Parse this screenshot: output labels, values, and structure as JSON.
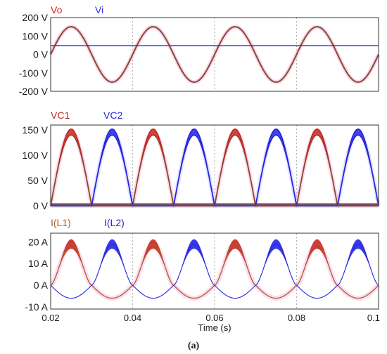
{
  "chart_data": [
    {
      "type": "line",
      "series": [
        {
          "name": "Vo",
          "color": "#d62020",
          "amplitude": 150,
          "shape": "sine",
          "period": 0.02
        },
        {
          "name": "Vi",
          "color": "#2b2bd9",
          "constant": 48
        }
      ],
      "ylim": [
        -200,
        200
      ],
      "yticks": [
        {
          "v": 200,
          "label": "200 V"
        },
        {
          "v": 100,
          "label": "100 V"
        },
        {
          "v": 0,
          "label": "0 V"
        },
        {
          "v": -100,
          "label": "-100 V"
        },
        {
          "v": -200,
          "label": "-200 V"
        }
      ]
    },
    {
      "type": "line",
      "series": [
        {
          "name": "VC1",
          "color": "#c62820",
          "peak": 140,
          "shape": "half-sine",
          "phase": "positive"
        },
        {
          "name": "VC2",
          "color": "#2525e0",
          "peak": 140,
          "shape": "half-sine",
          "phase": "negative"
        }
      ],
      "ylim": [
        0,
        160
      ],
      "yticks": [
        {
          "v": 150,
          "label": "150 V"
        },
        {
          "v": 100,
          "label": "100 V"
        },
        {
          "v": 50,
          "label": "50 V"
        },
        {
          "v": 0,
          "label": "0 V"
        }
      ]
    },
    {
      "type": "line",
      "series": [
        {
          "name": "I(L1)",
          "color": "#b5562a",
          "peak": 19,
          "trough": -6
        },
        {
          "name": "I(L2)",
          "color": "#2525e0",
          "peak": 19,
          "trough": -6
        }
      ],
      "ylim": [
        -11,
        24
      ],
      "yticks": [
        {
          "v": 20,
          "label": "20 A"
        },
        {
          "v": 10,
          "label": "10 A"
        },
        {
          "v": 0,
          "label": "0 A"
        },
        {
          "v": -10,
          "label": "-10 A"
        }
      ]
    }
  ],
  "x_axis": {
    "range": [
      0.02,
      0.1
    ],
    "ticks": [
      {
        "v": 0.02,
        "label": "0.02"
      },
      {
        "v": 0.04,
        "label": "0.04"
      },
      {
        "v": 0.06,
        "label": "0.06"
      },
      {
        "v": 0.08,
        "label": "0.08"
      },
      {
        "v": 0.1,
        "label": "0.1"
      }
    ],
    "label": "Time (s)"
  },
  "caption": "(a)"
}
